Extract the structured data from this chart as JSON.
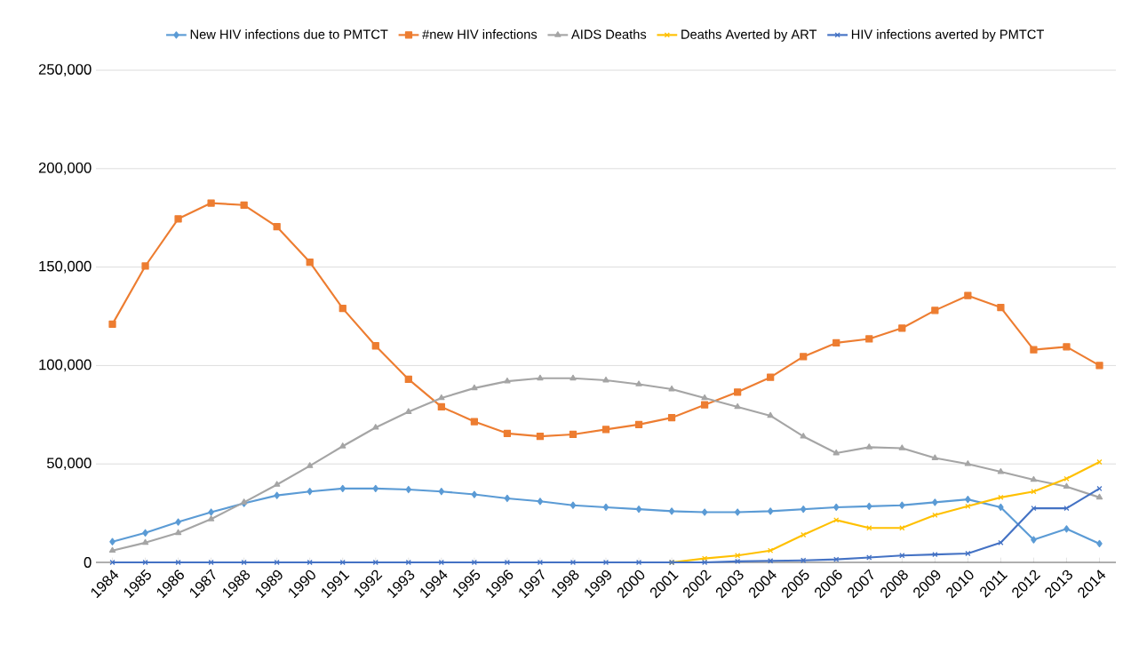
{
  "chart_data": {
    "type": "line",
    "categories": [
      "1984",
      "1985",
      "1986",
      "1987",
      "1988",
      "1989",
      "1990",
      "1991",
      "1992",
      "1993",
      "1994",
      "1995",
      "1996",
      "1997",
      "1998",
      "1999",
      "2000",
      "2001",
      "2002",
      "2003",
      "2004",
      "2005",
      "2006",
      "2007",
      "2008",
      "2009",
      "2010",
      "2011",
      "2012",
      "2013",
      "2014"
    ],
    "series": [
      {
        "name": "New HIV infections due to PMTCT",
        "color": "#5b9bd5",
        "marker": "diamond",
        "values": [
          10500,
          15000,
          20500,
          25500,
          30000,
          34000,
          36000,
          37500,
          37500,
          37000,
          36000,
          34500,
          32500,
          31000,
          29000,
          28000,
          27000,
          26000,
          25500,
          25500,
          26000,
          27000,
          28000,
          28500,
          29000,
          30500,
          32000,
          28000,
          11500,
          17000,
          9500
        ]
      },
      {
        "name": "#new HIV infections",
        "color": "#ed7d31",
        "marker": "square",
        "values": [
          121000,
          150500,
          174500,
          182500,
          181500,
          170500,
          152500,
          129000,
          110000,
          93000,
          79000,
          71500,
          65500,
          64000,
          65000,
          67500,
          70000,
          73500,
          80000,
          86500,
          94000,
          104500,
          111500,
          113500,
          119000,
          128000,
          135500,
          129500,
          108000,
          109500,
          100000
        ]
      },
      {
        "name": "AIDS Deaths",
        "color": "#a5a5a5",
        "marker": "triangle",
        "values": [
          6000,
          10000,
          15000,
          22000,
          30500,
          39500,
          49000,
          59000,
          68500,
          76500,
          83500,
          88500,
          92000,
          93500,
          93500,
          92500,
          90500,
          88000,
          83500,
          79000,
          74500,
          64000,
          55500,
          58500,
          58000,
          53000,
          50000,
          46000,
          42000,
          38500,
          33000
        ]
      },
      {
        "name": "Deaths Averted by ART",
        "color": "#ffc000",
        "marker": "cross",
        "values": [
          null,
          null,
          null,
          null,
          null,
          null,
          null,
          null,
          null,
          null,
          null,
          null,
          null,
          null,
          null,
          null,
          null,
          0,
          2000,
          3500,
          6000,
          14000,
          21500,
          17500,
          17500,
          24000,
          28500,
          33000,
          36000,
          42500,
          51000
        ]
      },
      {
        "name": "HIV infections averted by PMTCT",
        "color": "#4472c4",
        "marker": "cross",
        "values": [
          0,
          0,
          0,
          0,
          0,
          0,
          0,
          0,
          0,
          0,
          0,
          0,
          0,
          0,
          0,
          0,
          0,
          0,
          0,
          500,
          800,
          1000,
          1500,
          2500,
          3500,
          4000,
          4500,
          10000,
          27500,
          27500,
          37500
        ]
      }
    ],
    "ylim": [
      0,
      250000
    ],
    "yticks": [
      0,
      {
        "value": 50000,
        "label": "50,000"
      },
      {
        "value": 100000,
        "label": "100,000"
      },
      {
        "value": 150000,
        "label": "150,000"
      },
      {
        "value": 200000,
        "label": "200,000"
      },
      {
        "value": 250000,
        "label": "250,000"
      }
    ],
    "grid": "y",
    "legend": "top",
    "line_style": "solid"
  }
}
